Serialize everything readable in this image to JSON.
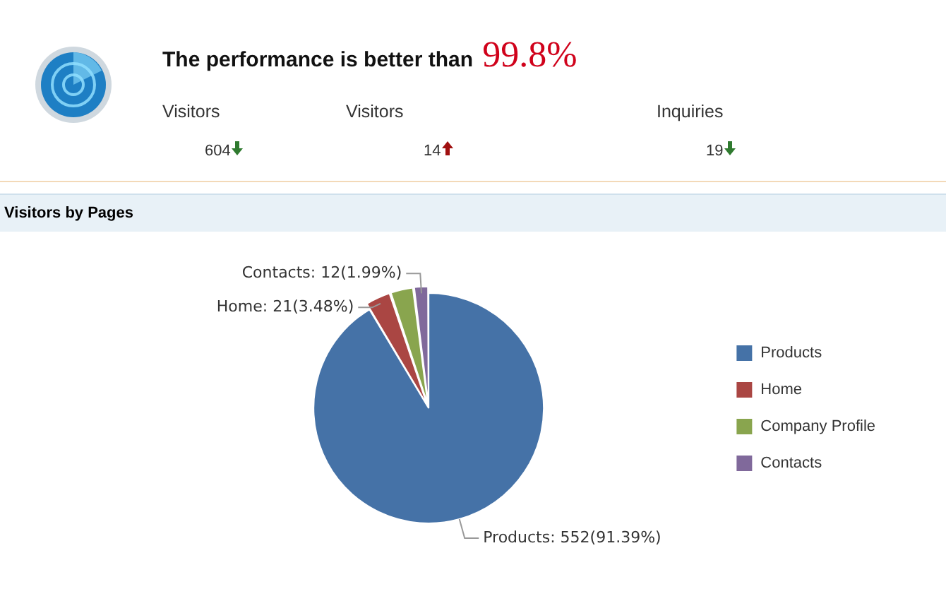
{
  "chart_data": [
    {
      "type": "other",
      "title": "The performance is better than 99.8%",
      "annotations": [
        "Visitors",
        "604",
        "Visitors",
        "14",
        "Inquiries",
        "19"
      ]
    },
    {
      "type": "pie",
      "title": "Visitors by Pages",
      "categories": [
        "Products",
        "Home",
        "Company Profile",
        "Contacts"
      ],
      "values": [
        552,
        21,
        19,
        12
      ],
      "colors": [
        "#4572a7",
        "#aa4643",
        "#89a54e",
        "#80699b"
      ],
      "value_labels": [
        "Products: 552(91.39%)",
        "Home: 21(3.48%)",
        null,
        "Contacts: 12(1.99%)"
      ],
      "legend": "right"
    }
  ]
}
